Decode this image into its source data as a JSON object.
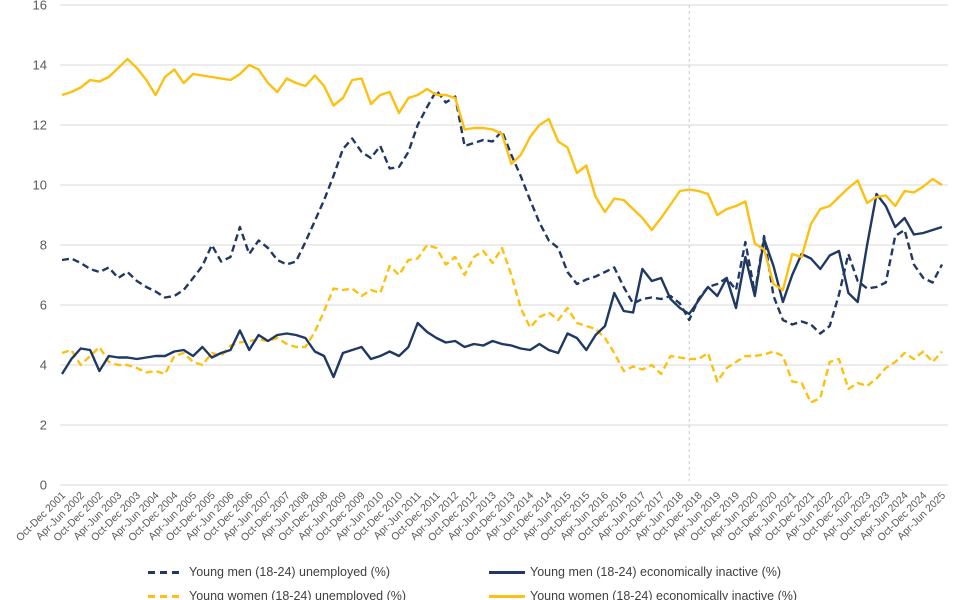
{
  "chart_data": {
    "type": "line",
    "title": "",
    "xlabel": "",
    "ylabel": "",
    "ylim": [
      0,
      16
    ],
    "y_ticks": [
      0,
      2,
      4,
      6,
      8,
      10,
      12,
      14,
      16
    ],
    "grid": "horizontal light gray gridlines",
    "legend_position": "bottom, two columns (second row clipped by image edge)",
    "x_frequency": "quarterly data points, labels every second quarter",
    "x_start": "Oct-Dec 2001",
    "x_end": "Apr-Jun 2025",
    "x_tick_labels": [
      "Oct-Dec 2001",
      "Apr-Jun 2002",
      "Oct-Dec 2002",
      "Apr-Jun 2003",
      "Oct-Dec 2003",
      "Apr-Jun 2004",
      "Oct-Dec 2004",
      "Apr-Jun 2005",
      "Oct-Dec 2005",
      "Apr-Jun 2006",
      "Oct-Dec 2006",
      "Apr-Jun 2007",
      "Oct-Dec 2007",
      "Apr-Jun 2008",
      "Oct-Dec 2008",
      "Apr-Jun 2009",
      "Oct-Dec 2009",
      "Apr-Jun 2010",
      "Oct-Dec 2010",
      "Apr-Jun 2011",
      "Oct-Dec 2011",
      "Apr-Jun 2012",
      "Oct-Dec 2012",
      "Apr-Jun 2013",
      "Oct-Dec 2013",
      "Apr-Jun 2014",
      "Oct-Dec 2014",
      "Apr-Jun 2015",
      "Oct-Dec 2015",
      "Apr-Jun 2016",
      "Oct-Dec 2016",
      "Apr-Jun 2017",
      "Oct-Dec 2017",
      "Apr-Jun 2018",
      "Oct-Dec 2018",
      "Apr-Jun 2019",
      "Oct-Dec 2019",
      "Apr-Jun 2020",
      "Oct-Dec 2020",
      "Apr-Jun 2021",
      "Oct-Dec 2021",
      "Apr-Jun 2022",
      "Oct-Dec 2022",
      "Apr-Jun 2023",
      "Oct-Dec 2023",
      "Apr-Jun 2024",
      "Oct-Dec 2024",
      "Apr-Jun 2025"
    ],
    "reference_line": {
      "style": "vertical dashed",
      "color": "#c9c9c9",
      "x_quarter_index": 67
    },
    "colors": {
      "navy": "#1f3864",
      "gold": "#fdc010",
      "gridline": "#d9d9d9",
      "tick_text": "#595959",
      "legend_text": "#404040"
    },
    "draw_order": [
      0,
      2,
      1,
      3
    ],
    "series": [
      {
        "name": "Young men (18-24) unemployed (%)",
        "color": "#1f3864",
        "dash": "dashed",
        "values": [
          7.5,
          7.55,
          7.4,
          7.2,
          7.1,
          7.25,
          6.9,
          7.1,
          6.8,
          6.6,
          6.45,
          6.25,
          6.3,
          6.5,
          6.9,
          7.3,
          8.0,
          7.45,
          7.6,
          8.6,
          7.7,
          8.15,
          7.9,
          7.5,
          7.35,
          7.45,
          8.1,
          8.8,
          9.5,
          10.3,
          11.2,
          11.55,
          11.1,
          10.9,
          11.3,
          10.55,
          10.6,
          11.1,
          12.0,
          12.6,
          13.15,
          12.75,
          12.95,
          11.3,
          11.4,
          11.5,
          11.45,
          11.8,
          11.0,
          10.3,
          9.5,
          8.75,
          8.15,
          7.9,
          7.1,
          6.7,
          6.85,
          6.95,
          7.1,
          7.25,
          6.6,
          6.05,
          6.2,
          6.25,
          6.2,
          6.3,
          6.05,
          5.5,
          6.2,
          6.6,
          6.7,
          6.9,
          6.5,
          8.1,
          6.4,
          8.3,
          6.3,
          5.5,
          5.35,
          5.45,
          5.35,
          5.05,
          5.3,
          6.35,
          7.7,
          6.8,
          6.55,
          6.6,
          6.75,
          8.3,
          8.5,
          7.35,
          6.9,
          6.75,
          7.35
        ]
      },
      {
        "name": "Young men (18-24) economically inactive (%)",
        "color": "#1f3864",
        "dash": "solid",
        "values": [
          3.7,
          4.2,
          4.55,
          4.5,
          3.8,
          4.3,
          4.25,
          4.25,
          4.2,
          4.25,
          4.3,
          4.3,
          4.45,
          4.5,
          4.3,
          4.6,
          4.25,
          4.4,
          4.5,
          5.15,
          4.5,
          5.0,
          4.8,
          5.0,
          5.05,
          5.0,
          4.9,
          4.45,
          4.3,
          3.6,
          4.4,
          4.5,
          4.6,
          4.2,
          4.3,
          4.45,
          4.3,
          4.6,
          5.4,
          5.1,
          4.9,
          4.75,
          4.8,
          4.6,
          4.7,
          4.65,
          4.8,
          4.7,
          4.65,
          4.55,
          4.5,
          4.7,
          4.5,
          4.4,
          5.05,
          4.9,
          4.5,
          5.0,
          5.3,
          6.4,
          5.8,
          5.75,
          7.2,
          6.8,
          6.9,
          6.2,
          5.9,
          5.7,
          6.15,
          6.6,
          6.3,
          6.9,
          5.9,
          7.6,
          6.3,
          8.2,
          7.3,
          6.1,
          7.0,
          7.7,
          7.55,
          7.2,
          7.65,
          7.8,
          6.4,
          6.1,
          8.0,
          9.7,
          9.3,
          8.6,
          8.9,
          8.35,
          8.4,
          8.5,
          8.6
        ]
      },
      {
        "name": "Young women (18-24) unemployed (%)",
        "color": "#fdc010",
        "dash": "dashed",
        "values": [
          4.4,
          4.5,
          4.0,
          4.3,
          4.6,
          4.1,
          4.0,
          4.0,
          3.9,
          3.75,
          3.8,
          3.7,
          4.3,
          4.4,
          4.1,
          4.0,
          4.4,
          4.3,
          4.65,
          4.75,
          4.8,
          4.85,
          4.8,
          4.9,
          4.7,
          4.6,
          4.6,
          5.1,
          5.8,
          6.55,
          6.5,
          6.55,
          6.3,
          6.5,
          6.4,
          7.3,
          7.0,
          7.5,
          7.55,
          8.0,
          7.9,
          7.35,
          7.6,
          7.0,
          7.6,
          7.8,
          7.4,
          7.9,
          7.0,
          5.9,
          5.25,
          5.6,
          5.75,
          5.5,
          5.9,
          5.4,
          5.3,
          5.2,
          4.9,
          4.4,
          3.8,
          3.95,
          3.85,
          4.0,
          3.7,
          4.3,
          4.25,
          4.2,
          4.2,
          4.4,
          3.45,
          3.9,
          4.1,
          4.3,
          4.3,
          4.35,
          4.45,
          4.3,
          3.45,
          3.4,
          2.75,
          2.9,
          4.1,
          4.2,
          3.2,
          3.4,
          3.3,
          3.55,
          3.9,
          4.1,
          4.4,
          4.2,
          4.45,
          4.1,
          4.45
        ]
      },
      {
        "name": "Young women (18-24) economically inactive (%)",
        "color": "#fdc010",
        "dash": "solid",
        "values": [
          13.0,
          13.1,
          13.25,
          13.5,
          13.45,
          13.6,
          13.9,
          14.2,
          13.9,
          13.5,
          13.0,
          13.6,
          13.85,
          13.4,
          13.7,
          13.65,
          13.6,
          13.55,
          13.5,
          13.7,
          14.0,
          13.85,
          13.4,
          13.1,
          13.55,
          13.4,
          13.3,
          13.65,
          13.3,
          12.65,
          12.9,
          13.5,
          13.55,
          12.7,
          13.0,
          13.1,
          12.4,
          12.9,
          13.0,
          13.2,
          13.0,
          13.0,
          12.9,
          11.85,
          11.9,
          11.9,
          11.85,
          11.7,
          10.7,
          11.0,
          11.6,
          12.0,
          12.2,
          11.45,
          11.25,
          10.4,
          10.65,
          9.6,
          9.1,
          9.55,
          9.5,
          9.2,
          8.9,
          8.5,
          8.9,
          9.35,
          9.8,
          9.85,
          9.8,
          9.7,
          9.0,
          9.2,
          9.3,
          9.45,
          8.05,
          7.85,
          6.7,
          6.5,
          7.7,
          7.6,
          8.7,
          9.2,
          9.3,
          9.6,
          9.9,
          10.15,
          9.4,
          9.6,
          9.65,
          9.3,
          9.8,
          9.75,
          9.95,
          10.2,
          10.0
        ]
      }
    ]
  },
  "legend": {
    "items": [
      {
        "label": "Young men (18-24) unemployed (%)"
      },
      {
        "label": "Young men (18-24) economically inactive (%)"
      },
      {
        "label": "Young women (18-24) unemployed (%)"
      },
      {
        "label": "Young women (18-24) economically inactive (%)"
      }
    ]
  }
}
